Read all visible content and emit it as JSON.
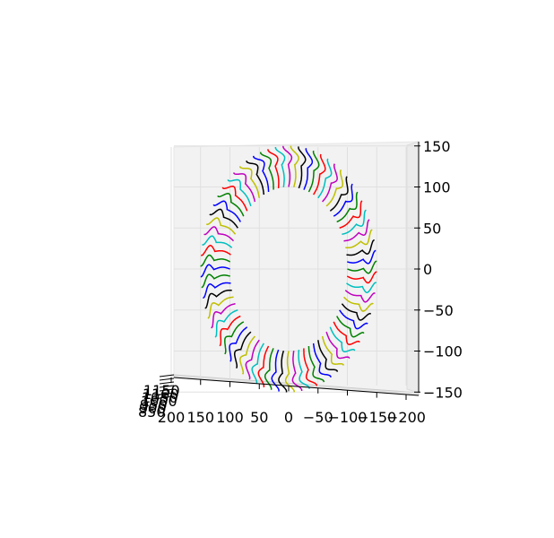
{
  "chart_data": {
    "type": "line",
    "projection": "3d",
    "view": "looking down the z axis; x axis reversed left-to-right",
    "description_shape": "ring of small looping curves (toroidal coil winding), many colored segments",
    "xlim": [
      200,
      -200
    ],
    "ylim": [
      -150,
      150
    ],
    "x_ticks": [
      "200",
      "150",
      "100",
      "50",
      "0",
      "−50",
      "−100",
      "−150",
      "−200"
    ],
    "y_ticks": [
      "150",
      "100",
      "50",
      "0",
      "−50",
      "−100",
      "−150"
    ],
    "z_ticks": [
      "1150",
      "1100",
      "1050",
      "1000",
      "950",
      "900",
      "850"
    ],
    "ring": {
      "inner_radius": 100,
      "outer_radius": 150,
      "loops": 72
    },
    "series_colors": [
      "#0000ff",
      "#008000",
      "#ff0000",
      "#00bfbf",
      "#bf00bf",
      "#bfbf00",
      "#000000"
    ],
    "grid": true,
    "pane_color": "#f2f2f2"
  }
}
